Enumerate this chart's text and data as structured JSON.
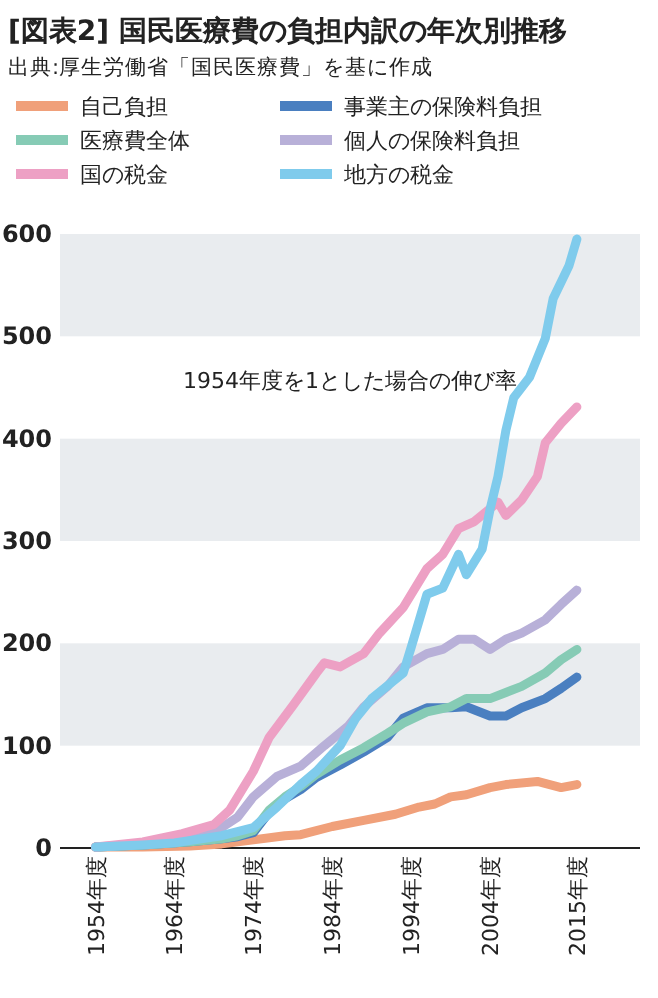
{
  "chart_data": {
    "type": "line",
    "title": "[図表2] 国民医療費の負担内訳の年次別推移",
    "subtitle": "出典:厚生労働省「国民医療費」を基に作成",
    "annotations": [
      "1954年度を1とした場合の伸び率"
    ],
    "xlim": [
      1949.5,
      2023
    ],
    "ylim": [
      0,
      600
    ],
    "xticks": [
      {
        "value": 1954,
        "label": "1954年度"
      },
      {
        "value": 1964,
        "label": "1964年度"
      },
      {
        "value": 1974,
        "label": "1974年度"
      },
      {
        "value": 1984,
        "label": "1984年度"
      },
      {
        "value": 1994,
        "label": "1994年度"
      },
      {
        "value": 2004,
        "label": "2004年度"
      },
      {
        "value": 2015,
        "label": "2015年度"
      }
    ],
    "yticks": [
      0,
      100,
      200,
      300,
      400,
      500,
      600
    ],
    "bands": [
      {
        "axis": "y",
        "from": 100,
        "to": 200,
        "color": "#e9ecef"
      },
      {
        "axis": "y",
        "from": 300,
        "to": 400,
        "color": "#e9ecef"
      },
      {
        "axis": "y",
        "from": 500,
        "to": 600,
        "color": "#e9ecef"
      }
    ],
    "legend": "top",
    "grid": false,
    "marker": "none",
    "line_style": "solid",
    "series": [
      {
        "name": "自己負担",
        "color": "#f0a07a",
        "x": [
          1954,
          1960,
          1966,
          1970,
          1974,
          1978,
          1980,
          1984,
          1988,
          1992,
          1995,
          1997,
          1999,
          2001,
          2004,
          2006,
          2010,
          2013,
          2015
        ],
        "values": [
          1,
          1,
          2,
          4,
          8,
          12,
          13,
          21,
          27,
          33,
          40,
          43,
          50,
          52,
          59,
          62,
          65,
          59,
          62
        ]
      },
      {
        "name": "事業主の保険料負担",
        "color": "#4a7fc0",
        "x": [
          1954,
          1960,
          1966,
          1970,
          1972,
          1974,
          1976,
          1978,
          1980,
          1982,
          1985,
          1988,
          1991,
          1993,
          1996,
          1999,
          2001,
          2004,
          2006,
          2008,
          2011,
          2013,
          2015
        ],
        "values": [
          1,
          3,
          6,
          9,
          11,
          15,
          35,
          48,
          57,
          69,
          81,
          94,
          108,
          127,
          137,
          137,
          138,
          129,
          129,
          137,
          146,
          156,
          167
        ]
      },
      {
        "name": "医療費全体",
        "color": "#86cbb5",
        "x": [
          1954,
          1960,
          1966,
          1970,
          1972,
          1974,
          1976,
          1978,
          1980,
          1982,
          1985,
          1988,
          1991,
          1993,
          1996,
          1999,
          2001,
          2004,
          2006,
          2008,
          2011,
          2013,
          2015
        ],
        "values": [
          1,
          3,
          6,
          9,
          12,
          17,
          37,
          50,
          60,
          72,
          86,
          98,
          112,
          122,
          133,
          138,
          146,
          146,
          152,
          158,
          171,
          184,
          194
        ]
      },
      {
        "name": "個人の保険料負担",
        "color": "#b8b0d8",
        "x": [
          1954,
          1960,
          1966,
          1970,
          1972,
          1974,
          1977,
          1980,
          1983,
          1986,
          1988,
          1991,
          1993,
          1996,
          1998,
          2000,
          2002,
          2004,
          2006,
          2008,
          2011,
          2013,
          2015
        ],
        "values": [
          1,
          4,
          10,
          20,
          30,
          50,
          70,
          80,
          100,
          119,
          138,
          158,
          177,
          190,
          194,
          204,
          204,
          194,
          204,
          210,
          223,
          238,
          252
        ]
      },
      {
        "name": "国の税金",
        "color": "#eda0c4",
        "x": [
          1954,
          1960,
          1965,
          1969,
          1971,
          1974,
          1976,
          1979,
          1982,
          1983,
          1985,
          1988,
          1990,
          1993,
          1996,
          1998,
          2000,
          2002,
          2005,
          2006,
          2008,
          2010,
          2011,
          2013,
          2015
        ],
        "values": [
          1,
          6,
          14,
          23,
          37,
          75,
          108,
          139,
          171,
          181,
          177,
          190,
          210,
          235,
          273,
          287,
          312,
          319,
          338,
          325,
          340,
          363,
          396,
          415,
          431
        ]
      },
      {
        "name": "地方の税金",
        "color": "#7fcbec",
        "x": [
          1954,
          1960,
          1964,
          1970,
          1974,
          1977,
          1980,
          1982,
          1985,
          1987,
          1989,
          1993,
          1994,
          1996,
          1998,
          2000,
          2001,
          2003,
          2004,
          2005,
          2006,
          2007,
          2009,
          2011,
          2012,
          2014,
          2015
        ],
        "values": [
          1,
          3,
          5,
          12,
          20,
          40,
          62,
          75,
          100,
          127,
          146,
          171,
          196,
          248,
          254,
          287,
          267,
          292,
          331,
          363,
          408,
          440,
          460,
          498,
          537,
          569,
          595
        ]
      }
    ]
  }
}
